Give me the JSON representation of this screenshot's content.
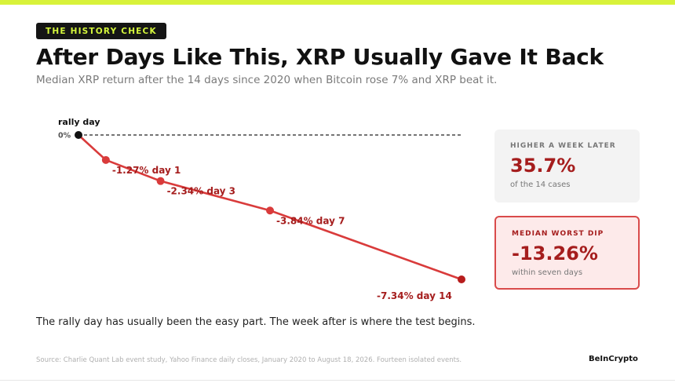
{
  "colors": {
    "accent_bar": "#d8f23a",
    "line": "#d93b3b",
    "point": "#b71c1c",
    "label": "#a51d1d",
    "start_point": "#111111"
  },
  "header": {
    "tag": "THE HISTORY CHECK",
    "title": "After Days Like This, XRP Usually Gave It Back",
    "subtitle": "Median XRP return after the 14 days since 2020 when Bitcoin rose 7% and XRP beat it."
  },
  "chart_data": {
    "type": "line",
    "start_label": "rally day",
    "zero_label": "0%",
    "x": [
      0,
      1,
      3,
      7,
      14
    ],
    "y": [
      0,
      -1.27,
      -2.34,
      -3.84,
      -7.34
    ],
    "point_labels": [
      "",
      "-1.27% day 1",
      "-2.34% day 3",
      "-3.84% day 7",
      "-7.34% day 14"
    ],
    "xlim": [
      0,
      14
    ],
    "ylim": [
      -7.34,
      0
    ],
    "baseline": 0,
    "grid": false
  },
  "cards": [
    {
      "label": "HIGHER A WEEK LATER",
      "value": "35.7%",
      "note": "of the 14 cases"
    },
    {
      "label": "MEDIAN WORST DIP",
      "value": "-13.26%",
      "note": "within seven days"
    }
  ],
  "caption": "The rally day has usually been the easy part. The week after is where the test begins.",
  "footer": {
    "source": "Source: Charlie Quant Lab event study, Yahoo Finance daily closes, January 2020 to August 18, 2026. Fourteen isolated events.",
    "brand": "BeInCrypto"
  }
}
